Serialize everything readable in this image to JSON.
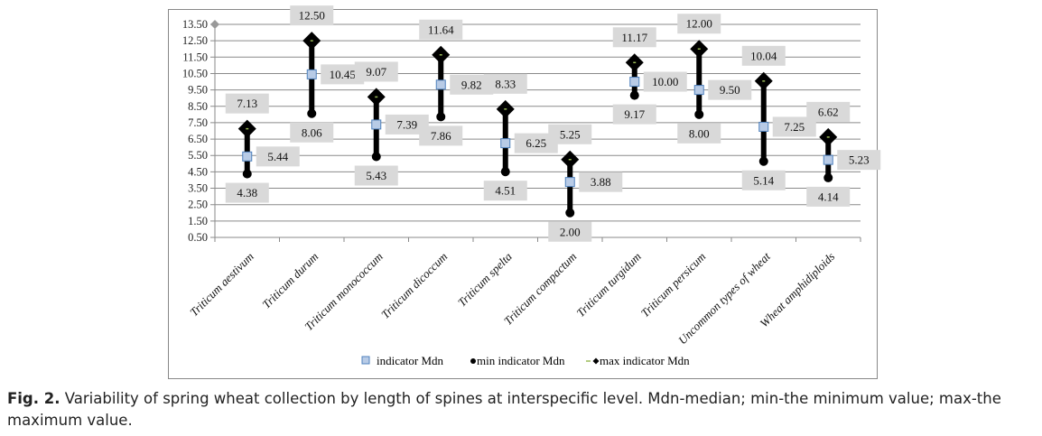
{
  "chart_data": {
    "type": "range-dot",
    "title": "",
    "xlabel": "",
    "ylabel": "",
    "ylim": [
      0.5,
      13.5
    ],
    "yticks": [
      "13.50",
      "12.50",
      "11.50",
      "10.50",
      "9.50",
      "8.50",
      "7.50",
      "6.50",
      "5.50",
      "4.50",
      "3.50",
      "2.50",
      "1.50",
      "0.50"
    ],
    "grid": true,
    "legend_placement": "bottom",
    "categories": [
      "Triticum aestivum",
      "Triticum durum",
      "Triticum monococcum",
      "Triticum  dicoccum",
      "Triticum spelta",
      "Triticum compactum",
      "Triticum turgidum",
      "Triticum persicum",
      "Uncommon types of wheat",
      "Wheat amphidiploids"
    ],
    "series": [
      {
        "name": "indicator Mdn",
        "values": [
          5.44,
          10.45,
          7.39,
          9.82,
          6.25,
          3.88,
          10.0,
          9.5,
          7.25,
          5.23
        ],
        "labels": [
          "5.44",
          "10.45",
          "7.39",
          "9.82",
          "6.25",
          "3.88",
          "10.00",
          "9.50",
          "7.25",
          "5.23"
        ],
        "color": "#b8cbe6"
      },
      {
        "name": "min indicator  Mdn",
        "values": [
          4.38,
          8.06,
          5.43,
          7.86,
          4.51,
          2.0,
          9.17,
          8.0,
          5.14,
          4.14
        ],
        "labels": [
          "4.38",
          "8.06",
          "5.43",
          "7.86",
          "4.51",
          "2.00",
          "9.17",
          "8.00",
          "5.14",
          "4.14"
        ],
        "color": "#000000"
      },
      {
        "name": "max indicator  Mdn",
        "values": [
          7.13,
          12.5,
          9.07,
          11.64,
          8.33,
          5.25,
          11.17,
          12.0,
          10.04,
          6.62
        ],
        "labels": [
          "7.13",
          "12.50",
          "9.07",
          "11.64",
          "8.33",
          "5.25",
          "11.17",
          "12.00",
          "10.04",
          "6.62"
        ],
        "color": "#000000"
      }
    ]
  },
  "caption": {
    "label": "Fig. 2.",
    "text": " Variability of spring wheat collection by length of spines at interspecific level. Mdn-median; min-the minimum value; max-the maximum value."
  }
}
